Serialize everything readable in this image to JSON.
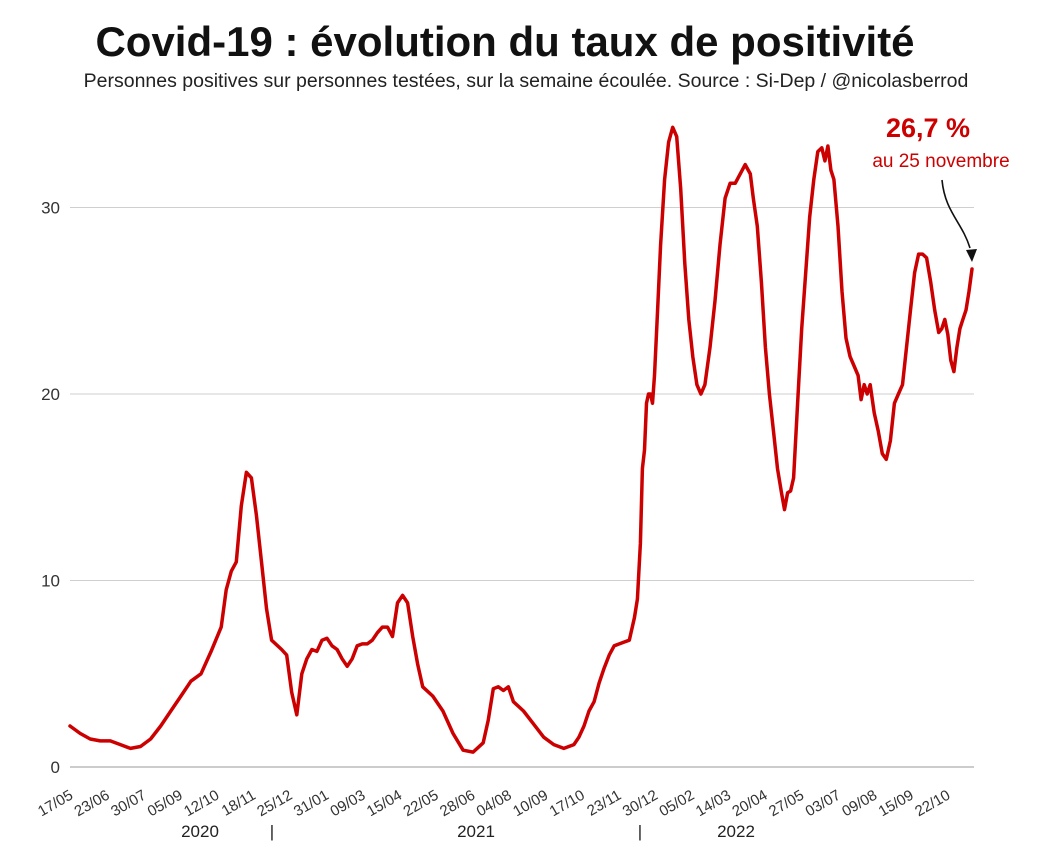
{
  "chart_data": {
    "type": "line",
    "title": "Covid-19 : évolution du taux de positivité",
    "subtitle": "Personnes positives sur personnes testées, sur la semaine écoulée. Source : Si-Dep / @nicolasberrod",
    "xlabel": "",
    "ylabel": "",
    "ylim": [
      0,
      35
    ],
    "yticks": [
      "0",
      "10",
      "20",
      "30"
    ],
    "ytick_values": [
      0,
      10,
      20,
      30
    ],
    "grid": true,
    "x_tick_labels": [
      "17/05",
      "23/06",
      "30/07",
      "05/09",
      "12/10",
      "18/11",
      "25/12",
      "31/01",
      "09/03",
      "15/04",
      "22/05",
      "28/06",
      "04/08",
      "10/09",
      "17/10",
      "23/11",
      "30/12",
      "05/02",
      "14/03",
      "20/04",
      "27/05",
      "03/07",
      "09/08",
      "15/09",
      "22/10"
    ],
    "year_labels": [
      "2020",
      "2021",
      "2022"
    ],
    "year_separator": "|",
    "annotation": {
      "value_label": "26,7 %",
      "date_label": "au 25 novembre",
      "value": 26.7
    },
    "series": [
      {
        "name": "Taux de positivité (%)",
        "color": "#cc0000",
        "points": [
          [
            0,
            2.2
          ],
          [
            10,
            1.8
          ],
          [
            20,
            1.5
          ],
          [
            30,
            1.4
          ],
          [
            40,
            1.4
          ],
          [
            50,
            1.2
          ],
          [
            60,
            1.0
          ],
          [
            70,
            1.1
          ],
          [
            80,
            1.5
          ],
          [
            90,
            2.2
          ],
          [
            100,
            3.0
          ],
          [
            110,
            3.8
          ],
          [
            120,
            4.6
          ],
          [
            130,
            5.0
          ],
          [
            140,
            6.2
          ],
          [
            150,
            7.5
          ],
          [
            155,
            9.5
          ],
          [
            160,
            10.5
          ],
          [
            165,
            11.0
          ],
          [
            170,
            14.0
          ],
          [
            175,
            15.8
          ],
          [
            180,
            15.5
          ],
          [
            185,
            13.5
          ],
          [
            190,
            11.0
          ],
          [
            195,
            8.5
          ],
          [
            200,
            6.8
          ],
          [
            210,
            6.3
          ],
          [
            215,
            6.0
          ],
          [
            220,
            4.0
          ],
          [
            225,
            2.8
          ],
          [
            230,
            5.0
          ],
          [
            235,
            5.8
          ],
          [
            240,
            6.3
          ],
          [
            245,
            6.2
          ],
          [
            250,
            6.8
          ],
          [
            255,
            6.9
          ],
          [
            260,
            6.5
          ],
          [
            265,
            6.3
          ],
          [
            270,
            5.8
          ],
          [
            275,
            5.4
          ],
          [
            280,
            5.8
          ],
          [
            285,
            6.5
          ],
          [
            290,
            6.6
          ],
          [
            295,
            6.6
          ],
          [
            300,
            6.8
          ],
          [
            305,
            7.2
          ],
          [
            310,
            7.5
          ],
          [
            315,
            7.5
          ],
          [
            320,
            7.0
          ],
          [
            325,
            8.8
          ],
          [
            330,
            9.2
          ],
          [
            335,
            8.8
          ],
          [
            340,
            7.0
          ],
          [
            345,
            5.5
          ],
          [
            350,
            4.3
          ],
          [
            360,
            3.8
          ],
          [
            370,
            3.0
          ],
          [
            380,
            1.8
          ],
          [
            390,
            0.9
          ],
          [
            400,
            0.8
          ],
          [
            410,
            1.3
          ],
          [
            415,
            2.5
          ],
          [
            420,
            4.2
          ],
          [
            425,
            4.3
          ],
          [
            430,
            4.1
          ],
          [
            435,
            4.3
          ],
          [
            440,
            3.5
          ],
          [
            450,
            3.0
          ],
          [
            460,
            2.3
          ],
          [
            470,
            1.6
          ],
          [
            480,
            1.2
          ],
          [
            490,
            1.0
          ],
          [
            500,
            1.2
          ],
          [
            505,
            1.6
          ],
          [
            510,
            2.2
          ],
          [
            515,
            3.0
          ],
          [
            520,
            3.5
          ],
          [
            525,
            4.5
          ],
          [
            530,
            5.3
          ],
          [
            535,
            6.0
          ],
          [
            540,
            6.5
          ],
          [
            545,
            6.6
          ],
          [
            550,
            6.7
          ],
          [
            555,
            6.8
          ],
          [
            560,
            8.0
          ],
          [
            563,
            9.0
          ],
          [
            566,
            12.0
          ],
          [
            568,
            16.0
          ],
          [
            570,
            17.0
          ],
          [
            572,
            19.5
          ],
          [
            574,
            20.0
          ],
          [
            576,
            20.0
          ],
          [
            578,
            19.5
          ],
          [
            580,
            21.0
          ],
          [
            583,
            24.5
          ],
          [
            586,
            28.0
          ],
          [
            590,
            31.5
          ],
          [
            594,
            33.5
          ],
          [
            598,
            34.3
          ],
          [
            602,
            33.8
          ],
          [
            606,
            31.0
          ],
          [
            610,
            27.0
          ],
          [
            614,
            24.0
          ],
          [
            618,
            22.0
          ],
          [
            622,
            20.5
          ],
          [
            626,
            20.0
          ],
          [
            630,
            20.5
          ],
          [
            635,
            22.5
          ],
          [
            640,
            25.0
          ],
          [
            645,
            28.0
          ],
          [
            650,
            30.5
          ],
          [
            655,
            31.3
          ],
          [
            660,
            31.3
          ],
          [
            665,
            31.8
          ],
          [
            670,
            32.3
          ],
          [
            675,
            31.8
          ],
          [
            678,
            30.5
          ],
          [
            682,
            29.0
          ],
          [
            686,
            26.0
          ],
          [
            690,
            22.5
          ],
          [
            694,
            20.0
          ],
          [
            698,
            18.0
          ],
          [
            702,
            16.0
          ],
          [
            706,
            14.7
          ],
          [
            709,
            13.8
          ],
          [
            712,
            14.7
          ],
          [
            715,
            14.8
          ],
          [
            718,
            15.5
          ],
          [
            722,
            19.5
          ],
          [
            726,
            23.5
          ],
          [
            730,
            26.5
          ],
          [
            734,
            29.5
          ],
          [
            738,
            31.5
          ],
          [
            742,
            33.0
          ],
          [
            746,
            33.2
          ],
          [
            749,
            32.5
          ],
          [
            752,
            33.3
          ],
          [
            755,
            32.0
          ],
          [
            758,
            31.5
          ],
          [
            762,
            29.0
          ],
          [
            766,
            25.5
          ],
          [
            770,
            23.0
          ],
          [
            774,
            22.0
          ],
          [
            778,
            21.5
          ],
          [
            782,
            21.0
          ],
          [
            785,
            19.7
          ],
          [
            788,
            20.5
          ],
          [
            791,
            20.0
          ],
          [
            794,
            20.5
          ],
          [
            798,
            19.0
          ],
          [
            802,
            18.0
          ],
          [
            806,
            16.8
          ],
          [
            810,
            16.5
          ],
          [
            814,
            17.5
          ],
          [
            818,
            19.5
          ],
          [
            822,
            20.0
          ],
          [
            826,
            20.5
          ],
          [
            830,
            22.5
          ],
          [
            834,
            24.5
          ],
          [
            838,
            26.5
          ],
          [
            842,
            27.5
          ],
          [
            846,
            27.5
          ],
          [
            850,
            27.3
          ],
          [
            854,
            26.0
          ],
          [
            858,
            24.5
          ],
          [
            862,
            23.3
          ],
          [
            865,
            23.5
          ],
          [
            868,
            24.0
          ],
          [
            871,
            23.2
          ],
          [
            874,
            21.8
          ],
          [
            877,
            21.2
          ],
          [
            880,
            22.5
          ],
          [
            883,
            23.5
          ],
          [
            886,
            24.0
          ],
          [
            889,
            24.5
          ],
          [
            892,
            25.5
          ],
          [
            895,
            26.7
          ]
        ]
      }
    ]
  }
}
